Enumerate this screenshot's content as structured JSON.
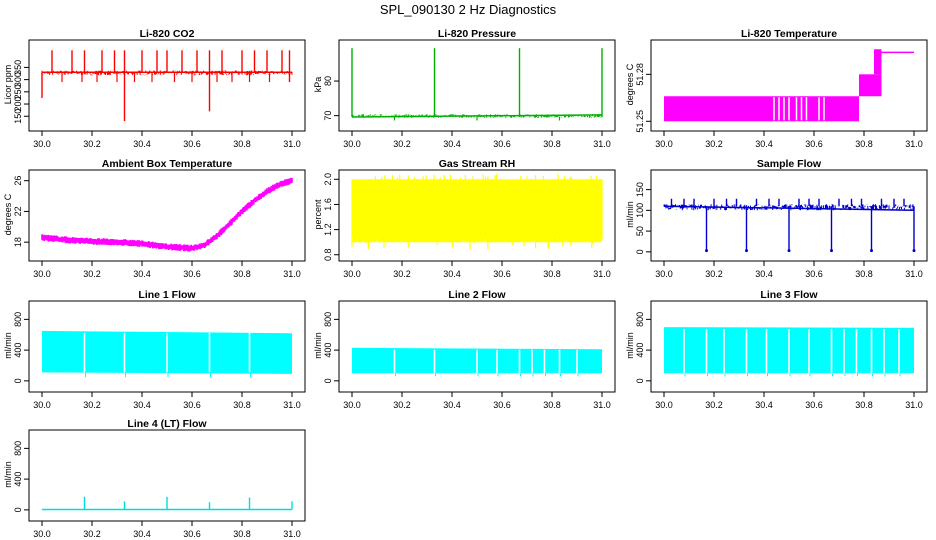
{
  "figure": {
    "title": "SPL_090130  2 Hz Diagnostics"
  },
  "chart_data": [
    {
      "id": "co2",
      "type": "line",
      "title": "Li-820 CO2",
      "xlabel": "",
      "ylabel": "Licor ppm",
      "xlim": [
        29.98,
        31.02
      ],
      "ylim": [
        110,
        450
      ],
      "xticks": [
        "30.0",
        "30.2",
        "30.4",
        "30.6",
        "30.8",
        "31.0"
      ],
      "yticks": [
        "150",
        "200",
        "250",
        "300",
        "350"
      ],
      "ytick_values": [
        150,
        200,
        250,
        300,
        350
      ],
      "color": "#ff0000",
      "base": [
        [
          30.0,
          330
        ],
        [
          31.0,
          330
        ]
      ],
      "band": [
        318,
        338
      ],
      "spikes_up": [
        30.04,
        30.12,
        30.17,
        30.24,
        30.29,
        30.33,
        30.4,
        30.46,
        30.5,
        30.56,
        30.62,
        30.67,
        30.72,
        30.8,
        30.85,
        30.9,
        30.96,
        30.99
      ],
      "spike_up_value": 420,
      "spikes_down": [
        30.08,
        30.16,
        30.22,
        30.3,
        30.37,
        30.44,
        30.53,
        30.6,
        30.7,
        30.76,
        30.83,
        30.91
      ],
      "spike_down_value": 290,
      "deep_dips": [
        [
          30.0,
          225
        ],
        [
          30.33,
          130
        ],
        [
          30.67,
          170
        ],
        [
          30.99,
          290
        ]
      ]
    },
    {
      "id": "pressure",
      "type": "line",
      "title": "Li-820 Pressure",
      "xlabel": "",
      "ylabel": "kPa",
      "xlim": [
        29.98,
        31.02
      ],
      "ylim": [
        67,
        91
      ],
      "xticks": [
        "30.0",
        "30.2",
        "30.4",
        "30.6",
        "30.8",
        "31.0"
      ],
      "yticks": [
        "70",
        "80"
      ],
      "ytick_values": [
        70,
        80
      ],
      "color": "#00b000",
      "base": [
        [
          30.0,
          69.6
        ],
        [
          31.0,
          70.2
        ]
      ],
      "band": [
        69.4,
        70.4
      ],
      "spikes_up": [
        30.0,
        30.33,
        30.67,
        31.0
      ],
      "spike_up_value": 89.5,
      "spikes_down": [
        30.17,
        30.5,
        30.83
      ],
      "spike_down_value": 68.6,
      "deep_dips": []
    },
    {
      "id": "temperature",
      "type": "line",
      "title": "Li-820 Temperature",
      "xlabel": "",
      "ylabel": "degrees C",
      "xlim": [
        29.98,
        31.02
      ],
      "ylim": [
        51.247,
        51.3
      ],
      "xticks": [
        "30.0",
        "30.2",
        "30.4",
        "30.6",
        "30.8",
        "31.0"
      ],
      "yticks": [
        "51.25",
        "51.28"
      ],
      "ytick_values": [
        51.25,
        51.28
      ],
      "color": "#ff00ff",
      "blocks": [
        [
          30.0,
          30.44,
          51.25,
          51.266
        ],
        [
          30.44,
          30.78,
          51.25,
          51.266
        ],
        [
          30.78,
          30.87,
          51.266,
          51.28
        ],
        [
          30.84,
          30.87,
          51.28,
          51.296
        ]
      ],
      "top_line": [
        [
          30.84,
          51.294
        ],
        [
          31.0,
          51.294
        ]
      ],
      "gaps": [
        30.44,
        30.46,
        30.48,
        30.5,
        30.53,
        30.55,
        30.57,
        30.62,
        30.64
      ]
    },
    {
      "id": "ambient",
      "type": "line",
      "title": "Ambient Box Temperature",
      "xlabel": "",
      "ylabel": "degrees C",
      "xlim": [
        29.98,
        31.02
      ],
      "ylim": [
        16.2,
        27
      ],
      "xticks": [
        "30.0",
        "30.2",
        "30.4",
        "30.6",
        "30.8",
        "31.0"
      ],
      "yticks": [
        "18",
        "22",
        "26"
      ],
      "ytick_values": [
        18,
        22,
        26
      ],
      "color": "#ff00ff",
      "curve": [
        [
          30.0,
          18.6
        ],
        [
          30.1,
          18.3
        ],
        [
          30.2,
          18.1
        ],
        [
          30.3,
          18.0
        ],
        [
          30.4,
          17.8
        ],
        [
          30.5,
          17.4
        ],
        [
          30.6,
          17.2
        ],
        [
          30.65,
          17.6
        ],
        [
          30.7,
          18.8
        ],
        [
          30.75,
          20.4
        ],
        [
          30.8,
          22.0
        ],
        [
          30.85,
          23.4
        ],
        [
          30.9,
          24.6
        ],
        [
          30.95,
          25.5
        ],
        [
          31.0,
          26.0
        ]
      ],
      "band": 0.45
    },
    {
      "id": "rh",
      "type": "line",
      "title": "Gas Stream RH",
      "xlabel": "",
      "ylabel": "percent",
      "xlim": [
        29.98,
        31.02
      ],
      "ylim": [
        0.78,
        2.1
      ],
      "xticks": [
        "30.0",
        "30.2",
        "30.4",
        "30.6",
        "30.8",
        "31.0"
      ],
      "yticks": [
        "0.8",
        "1.2",
        "1.6",
        "2.0"
      ],
      "ytick_values": [
        0.8,
        1.2,
        1.6,
        2.0
      ],
      "color": "#ffff00",
      "band_range": [
        1.0,
        2.0
      ],
      "noise_low": 0.88,
      "noise_high": 2.08
    },
    {
      "id": "sample_flow",
      "type": "line",
      "title": "Sample Flow",
      "xlabel": "",
      "ylabel": "ml/min",
      "xlim": [
        29.98,
        31.02
      ],
      "ylim": [
        -10,
        190
      ],
      "xticks": [
        "30.0",
        "30.2",
        "30.4",
        "30.6",
        "30.8",
        "31.0"
      ],
      "yticks": [
        "0",
        "50",
        "100",
        "150"
      ],
      "ytick_values": [
        0,
        50,
        100,
        150
      ],
      "color": "#0000cc",
      "base": [
        [
          30.0,
          110
        ],
        [
          31.0,
          100
        ]
      ],
      "band": [
        100,
        115
      ],
      "dips": [
        30.17,
        30.33,
        30.5,
        30.67,
        30.83,
        31.0
      ],
      "dip_value": 3,
      "spikes_up": [
        30.03,
        30.08,
        30.12,
        30.2,
        30.25,
        30.29,
        30.37,
        30.42,
        30.46,
        30.54,
        30.58,
        30.62,
        30.7,
        30.75,
        30.79,
        30.87,
        30.92,
        30.96
      ],
      "spike_up_value": 128
    },
    {
      "id": "line1",
      "type": "line",
      "title": "Line 1 Flow",
      "xlabel": "",
      "ylabel": "ml/min",
      "xlim": [
        29.98,
        31.02
      ],
      "ylim": [
        -80,
        1000
      ],
      "xticks": [
        "30.0",
        "30.2",
        "30.4",
        "30.6",
        "30.8",
        "31.0"
      ],
      "yticks": [
        "0",
        "400",
        "800"
      ],
      "ytick_values": [
        0,
        400,
        800
      ],
      "color": "#00ffff",
      "band": [
        [
          30.0,
          110,
          650
        ],
        [
          31.0,
          90,
          620
        ]
      ],
      "gaps": [
        30.17,
        30.33,
        30.5,
        30.67,
        30.83
      ],
      "gap_value": 50
    },
    {
      "id": "line2",
      "type": "line",
      "title": "Line 2 Flow",
      "xlabel": "",
      "ylabel": "ml/min",
      "xlim": [
        29.98,
        31.02
      ],
      "ylim": [
        -80,
        1000
      ],
      "xticks": [
        "30.0",
        "30.2",
        "30.4",
        "30.6",
        "30.8",
        "31.0"
      ],
      "yticks": [
        "0",
        "400",
        "800"
      ],
      "ytick_values": [
        0,
        400,
        800
      ],
      "color": "#00ffff",
      "band": [
        [
          30.0,
          100,
          430
        ],
        [
          31.0,
          100,
          410
        ]
      ],
      "gaps": [
        30.17,
        30.33,
        30.5,
        30.58,
        30.67,
        30.72,
        30.77,
        30.83,
        30.9
      ],
      "gap_value": 60
    },
    {
      "id": "line3",
      "type": "line",
      "title": "Line 3 Flow",
      "xlabel": "",
      "ylabel": "ml/min",
      "xlim": [
        29.98,
        31.02
      ],
      "ylim": [
        -80,
        1000
      ],
      "xticks": [
        "30.0",
        "30.2",
        "30.4",
        "30.6",
        "30.8",
        "31.0"
      ],
      "yticks": [
        "0",
        "400",
        "800"
      ],
      "ytick_values": [
        0,
        400,
        800
      ],
      "color": "#00ffff",
      "band": [
        [
          30.0,
          100,
          700
        ],
        [
          31.0,
          100,
          690
        ]
      ],
      "gaps": [
        30.08,
        30.17,
        30.24,
        30.33,
        30.41,
        30.5,
        30.58,
        30.67,
        30.72,
        30.77,
        30.83,
        30.88,
        30.94
      ],
      "gap_value": 60
    },
    {
      "id": "line4",
      "type": "line",
      "title": "Line 4 (LT) Flow",
      "xlabel": "",
      "ylabel": "ml/min",
      "xlim": [
        29.98,
        31.02
      ],
      "ylim": [
        -80,
        1000
      ],
      "xticks": [
        "30.0",
        "30.2",
        "30.4",
        "30.6",
        "30.8",
        "31.0"
      ],
      "yticks": [
        "0",
        "400",
        "800"
      ],
      "ytick_values": [
        0,
        400,
        800
      ],
      "color": "#00dddd",
      "base": [
        [
          30.0,
          5
        ],
        [
          31.0,
          5
        ]
      ],
      "band": [
        0,
        10
      ],
      "spikes_up": [
        30.17,
        30.33,
        30.5,
        30.67,
        30.83,
        31.0
      ],
      "spike_up_values": [
        170,
        110,
        170,
        100,
        160,
        110
      ]
    }
  ]
}
